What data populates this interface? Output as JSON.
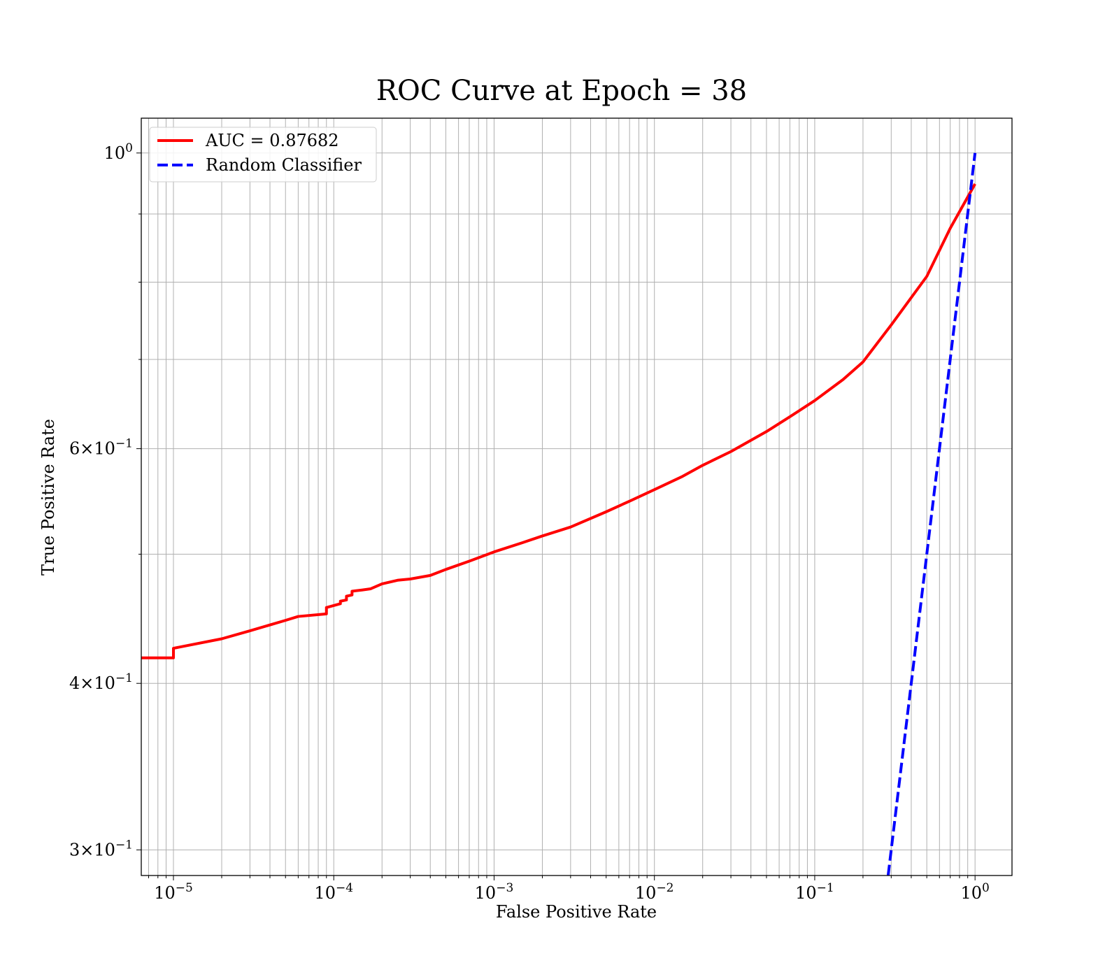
{
  "chart_data": {
    "type": "line",
    "title": "ROC Curve at Epoch = 38",
    "xlabel": "False Positive Rate",
    "ylabel": "True Positive Rate",
    "x_scale": "log",
    "y_scale": "log",
    "xlim": [
      6.3e-06,
      1.7
    ],
    "ylim": [
      0.287,
      1.062
    ],
    "grid": true,
    "grid_color": "#b0b0b0",
    "legend_position": "upper-left",
    "x_ticks": [
      {
        "value": 1e-05,
        "base": "10",
        "exp": "−5"
      },
      {
        "value": 0.0001,
        "base": "10",
        "exp": "−4"
      },
      {
        "value": 0.001,
        "base": "10",
        "exp": "−3"
      },
      {
        "value": 0.01,
        "base": "10",
        "exp": "−2"
      },
      {
        "value": 0.1,
        "base": "10",
        "exp": "−1"
      },
      {
        "value": 1,
        "base": "10",
        "exp": "0"
      }
    ],
    "y_ticks": [
      {
        "value": 1.0,
        "mant": "",
        "base": "10",
        "exp": "0"
      },
      {
        "value": 0.6,
        "mant": "6",
        "base": "10",
        "exp": "−1"
      },
      {
        "value": 0.4,
        "mant": "4",
        "base": "10",
        "exp": "−1"
      },
      {
        "value": 0.3,
        "mant": "3",
        "base": "10",
        "exp": "−1"
      }
    ],
    "series": [
      {
        "name": "AUC = 0.87682",
        "color": "#ff0000",
        "style": "solid",
        "x": [
          6.3e-06,
          1e-05,
          1e-05,
          2e-05,
          3e-05,
          5e-05,
          6e-05,
          9e-05,
          9e-05,
          0.00011,
          0.00011,
          0.00012,
          0.00012,
          0.00013,
          0.00013,
          0.00015,
          0.00017,
          0.0002,
          0.00025,
          0.0003,
          0.0004,
          0.0005,
          0.0007,
          0.001,
          0.0015,
          0.002,
          0.003,
          0.005,
          0.007,
          0.01,
          0.015,
          0.02,
          0.03,
          0.05,
          0.07,
          0.1,
          0.15,
          0.2,
          0.3,
          0.5,
          0.7,
          1.0
        ],
        "y": [
          0.418,
          0.418,
          0.425,
          0.432,
          0.438,
          0.446,
          0.449,
          0.451,
          0.456,
          0.459,
          0.461,
          0.462,
          0.465,
          0.466,
          0.469,
          0.47,
          0.471,
          0.475,
          0.478,
          0.479,
          0.482,
          0.487,
          0.494,
          0.502,
          0.51,
          0.516,
          0.524,
          0.538,
          0.548,
          0.559,
          0.572,
          0.583,
          0.597,
          0.618,
          0.634,
          0.652,
          0.676,
          0.697,
          0.743,
          0.808,
          0.878,
          0.948
        ]
      },
      {
        "name": "Random Classifier",
        "color": "#0000ff",
        "style": "dashed",
        "x": [
          0.28,
          1.0
        ],
        "y": [
          0.28,
          1.0
        ]
      }
    ]
  }
}
